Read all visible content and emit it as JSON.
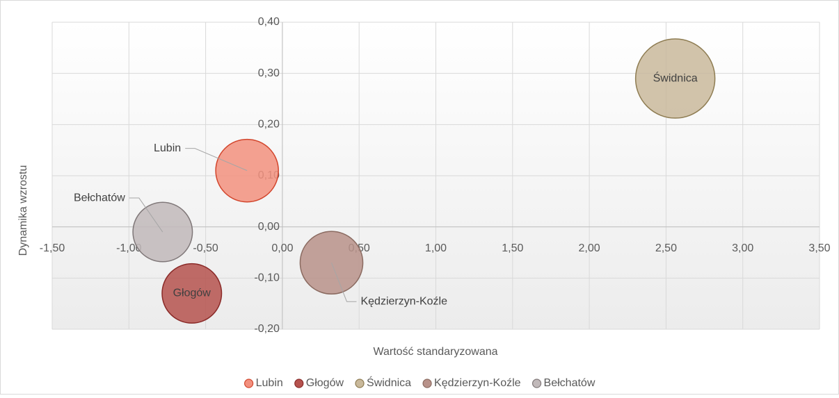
{
  "chart_data": {
    "type": "bubble",
    "xlabel": "Wartość standaryzowana",
    "ylabel": "Dynamika wzrostu",
    "xlim": [
      -1.5,
      3.5
    ],
    "ylim": [
      -0.2,
      0.4
    ],
    "xticks": [
      {
        "value": -1.5,
        "label": "-1,50"
      },
      {
        "value": -1.0,
        "label": "-1,00"
      },
      {
        "value": -0.5,
        "label": "-0,50"
      },
      {
        "value": 0,
        "label": "0,00"
      },
      {
        "value": 0.5,
        "label": "0,50"
      },
      {
        "value": 1.0,
        "label": "1,00"
      },
      {
        "value": 1.5,
        "label": "1,50"
      },
      {
        "value": 2.0,
        "label": "2,00"
      },
      {
        "value": 2.5,
        "label": "2,50"
      },
      {
        "value": 3.0,
        "label": "3,00"
      },
      {
        "value": 3.5,
        "label": "3,50"
      }
    ],
    "yticks": [
      {
        "value": -0.2,
        "label": "-0,20"
      },
      {
        "value": -0.1,
        "label": "-0,10"
      },
      {
        "value": 0,
        "label": "0,00"
      },
      {
        "value": 0.1,
        "label": "0,10"
      },
      {
        "value": 0.2,
        "label": "0,20"
      },
      {
        "value": 0.3,
        "label": "0,30"
      },
      {
        "value": 0.4,
        "label": "0,40"
      }
    ],
    "grid": true,
    "legend": "bottom",
    "series": [
      {
        "name": "Lubin",
        "color": "#f2907e",
        "edge": "#d2452c",
        "x": [
          -0.23
        ],
        "values": [
          0.11
        ],
        "sizes": [
          20
        ]
      },
      {
        "name": "Głogów",
        "color": "#b5524e",
        "edge": "#8a2a28",
        "x": [
          -0.59
        ],
        "values": [
          -0.13
        ],
        "sizes": [
          18
        ]
      },
      {
        "name": "Świdnica",
        "color": "#c9b99b",
        "edge": "#8e7c52",
        "x": [
          2.56
        ],
        "values": [
          0.29
        ],
        "sizes": [
          32
        ]
      },
      {
        "name": "Kędzierzyn-Koźle",
        "color": "#b8928a",
        "edge": "#8a6a60",
        "x": [
          0.32
        ],
        "values": [
          -0.07
        ],
        "sizes": [
          20
        ]
      },
      {
        "name": "Bełchatów",
        "color": "#c1b9ba",
        "edge": "#7f7778",
        "x": [
          -0.78
        ],
        "values": [
          -0.01
        ],
        "sizes": [
          18
        ]
      }
    ]
  }
}
